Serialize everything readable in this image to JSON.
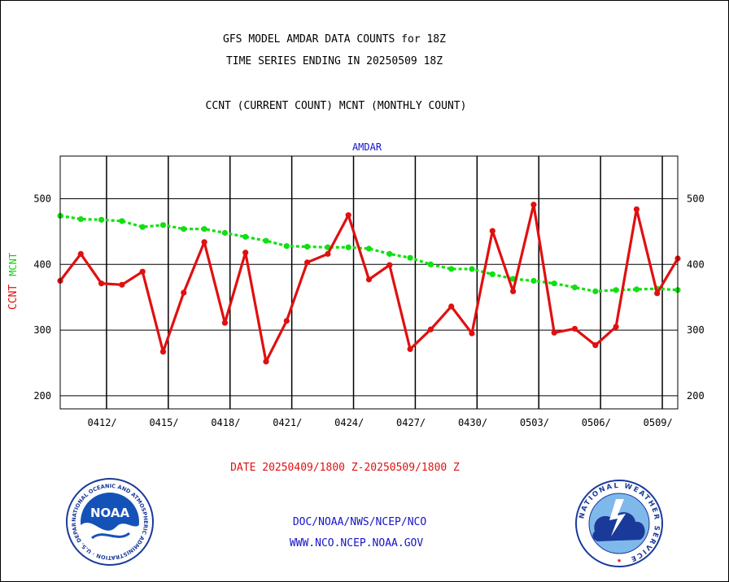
{
  "header": {
    "title_line1": "GFS MODEL AMDAR DATA COUNTS for 18Z",
    "title_line2": "TIME SERIES ENDING IN 20250509 18Z",
    "subtitle": "CCNT (CURRENT COUNT) MCNT (MONTHLY COUNT)"
  },
  "chart_data": {
    "type": "line",
    "title": "AMDAR",
    "ylabel_ccnt": "CCNT",
    "ylabel_mcnt": "MCNT",
    "xlabel": "DATE 20250409/1800 Z-20250509/1800 Z",
    "ylim": [
      180,
      565
    ],
    "yticks": [
      200,
      300,
      400,
      500
    ],
    "ytick_labels": [
      "200",
      "300",
      "400",
      "500"
    ],
    "xlim": [
      0,
      30
    ],
    "xticks": [
      2,
      5,
      8,
      11,
      14,
      17,
      20,
      23,
      26,
      29
    ],
    "xtick_labels": [
      "0412/",
      "0415/",
      "0418/",
      "0421/",
      "0424/",
      "0427/",
      "0430/",
      "0503/",
      "0506/",
      "0509/"
    ],
    "vertical_gridlines": [
      2.25,
      5.25,
      8.25,
      11.25,
      14.25,
      17.25,
      20.25,
      23.25,
      26.25,
      29.25
    ],
    "grid": true,
    "series": [
      {
        "name": "CCNT",
        "color": "#e01010",
        "style": "solid",
        "x": [
          0,
          1,
          2,
          3,
          4,
          5,
          6,
          7,
          8,
          9,
          10,
          11,
          12,
          13,
          14,
          15,
          16,
          17,
          18,
          19,
          20,
          21,
          22,
          23,
          24,
          25,
          26,
          27,
          28,
          29,
          30
        ],
        "values": [
          375,
          416,
          371,
          369,
          389,
          267,
          357,
          434,
          311,
          418,
          252,
          314,
          403,
          416,
          475,
          377,
          399,
          271,
          301,
          336,
          295,
          451,
          359,
          491,
          296,
          302,
          277,
          305,
          484,
          356,
          409
        ]
      },
      {
        "name": "MCNT",
        "color": "#10e010",
        "style": "dashed",
        "x": [
          0,
          1,
          2,
          3,
          4,
          5,
          6,
          7,
          8,
          9,
          10,
          11,
          12,
          13,
          14,
          15,
          16,
          17,
          18,
          19,
          20,
          21,
          22,
          23,
          24,
          25,
          26,
          27,
          28,
          29,
          30
        ],
        "values": [
          474,
          469,
          468,
          466,
          457,
          460,
          454,
          454,
          448,
          442,
          436,
          428,
          427,
          426,
          426,
          424,
          416,
          410,
          400,
          393,
          393,
          385,
          378,
          375,
          371,
          365,
          359,
          361,
          362,
          363,
          361
        ]
      }
    ]
  },
  "footer": {
    "link1": "DOC/NOAA/NWS/NCEP/NCO",
    "link2": "WWW.NCO.NCEP.NOAA.GOV",
    "noaa_logo_text": "NOAA",
    "noaa_ring_text": "NATIONAL OCEANIC AND ATMOSPHERIC ADMINISTRATION · U.S. DEPARTMENT OF COMMERCE",
    "nws_ring_text": "NATIONAL WEATHER SERVICE"
  }
}
